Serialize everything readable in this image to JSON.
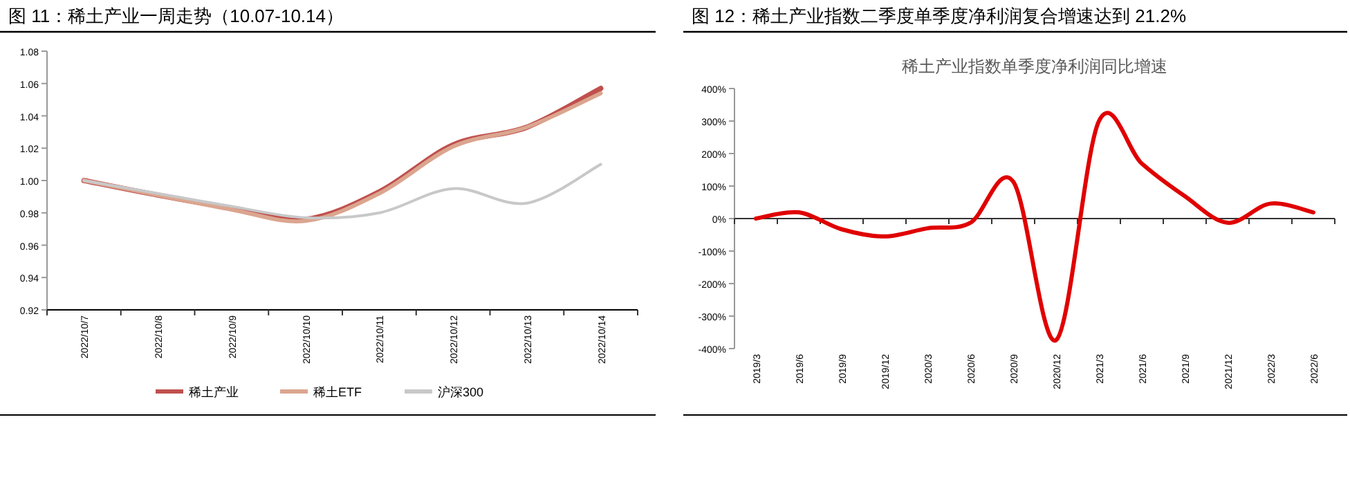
{
  "chart_data": [
    {
      "type": "line",
      "title": "图 11：稀土产业一周走势（10.07-10.14）",
      "categories": [
        "2022/10/7",
        "2022/10/8",
        "2022/10/9",
        "2022/10/10",
        "2022/10/11",
        "2022/10/12",
        "2022/10/13",
        "2022/10/14"
      ],
      "series": [
        {
          "name": "稀土产业",
          "color": "#c0504d",
          "values": [
            1.0,
            0.991,
            0.983,
            0.976,
            0.993,
            1.022,
            1.033,
            1.057
          ]
        },
        {
          "name": "稀土ETF",
          "color": "#dba58f",
          "values": [
            1.0,
            0.991,
            0.982,
            0.975,
            0.992,
            1.021,
            1.033,
            1.054
          ]
        },
        {
          "name": "沪深300",
          "color": "#c8c8c8",
          "values": [
            1.0,
            0.992,
            0.984,
            0.977,
            0.98,
            0.995,
            0.986,
            1.01
          ]
        }
      ],
      "ylim": [
        0.92,
        1.08
      ],
      "yticks": [
        {
          "value": 0.92,
          "label": "0.92"
        },
        {
          "value": 0.94,
          "label": "0.94"
        },
        {
          "value": 0.96,
          "label": "0.96"
        },
        {
          "value": 0.98,
          "label": "0.98"
        },
        {
          "value": 1.0,
          "label": "1.00"
        },
        {
          "value": 1.02,
          "label": "1.02"
        },
        {
          "value": 1.04,
          "label": "1.04"
        },
        {
          "value": 1.06,
          "label": "1.06"
        },
        {
          "value": 1.08,
          "label": "1.08"
        }
      ],
      "legend": "bottom",
      "grid": false,
      "marker": "none",
      "line_style": "solid"
    },
    {
      "type": "line",
      "title": "图 12：稀土产业指数二季度单季度净利润复合增速达到 21.2%",
      "subtitle": "稀土产业指数单季度净利润同比增速",
      "categories": [
        "2019/3",
        "2019/6",
        "2019/9",
        "2019/12",
        "2020/3",
        "2020/6",
        "2020/9",
        "2020/12",
        "2021/3",
        "2021/6",
        "2021/9",
        "2021/12",
        "2022/3",
        "2022/6"
      ],
      "series": [
        {
          "color": "#e00000",
          "values": [
            0,
            19,
            -33,
            -55,
            -30,
            -13,
            114,
            -374,
            300,
            169,
            69,
            -13,
            46,
            19
          ]
        }
      ],
      "ylim": [
        -400,
        400
      ],
      "yticks": [
        {
          "value": -400,
          "label": "-400%"
        },
        {
          "value": -300,
          "label": "-300%"
        },
        {
          "value": -200,
          "label": "-200%"
        },
        {
          "value": -100,
          "label": "-100%"
        },
        {
          "value": 0,
          "label": "0%"
        },
        {
          "value": 100,
          "label": "100%"
        },
        {
          "value": 200,
          "label": "200%"
        },
        {
          "value": 300,
          "label": "300%"
        },
        {
          "value": 400,
          "label": "400%"
        }
      ],
      "legend": false,
      "marker": "none",
      "line_style": "solid"
    }
  ]
}
